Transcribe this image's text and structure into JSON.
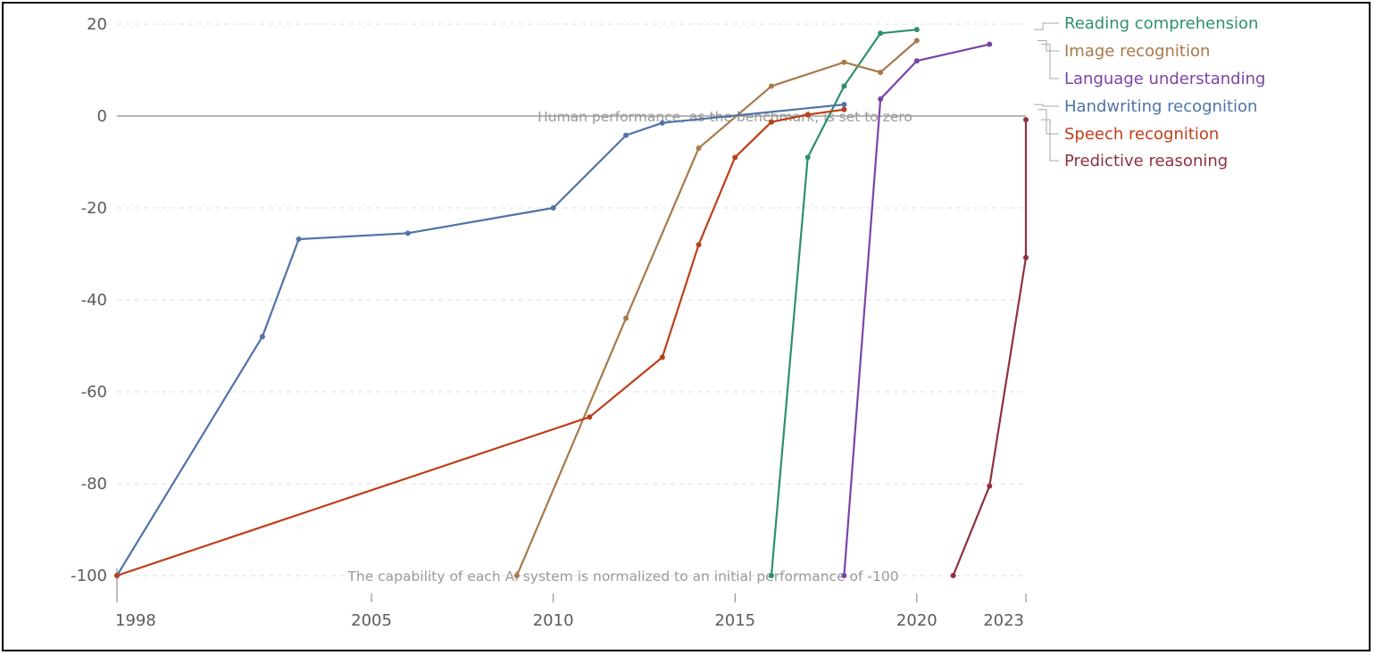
{
  "chart_data": {
    "type": "line",
    "title": "",
    "xlabel": "",
    "ylabel": "",
    "xlim": [
      1998,
      2023
    ],
    "ylim": [
      -100,
      20
    ],
    "x_ticks": [
      {
        "value": 1998,
        "label": "1998"
      },
      {
        "value": 2005,
        "label": "2005"
      },
      {
        "value": 2010,
        "label": "2010"
      },
      {
        "value": 2015,
        "label": "2015"
      },
      {
        "value": 2020,
        "label": "2020"
      },
      {
        "value": 2023,
        "label": "2023"
      }
    ],
    "y_ticks": [
      {
        "value": 20,
        "label": "20"
      },
      {
        "value": 0,
        "label": "0"
      },
      {
        "value": -20,
        "label": "-20"
      },
      {
        "value": -40,
        "label": "-40"
      },
      {
        "value": -60,
        "label": "-60"
      },
      {
        "value": -80,
        "label": "-80"
      },
      {
        "value": -100,
        "label": "-100"
      }
    ],
    "grid": true,
    "legend_position": "right",
    "annotations": [
      {
        "text": "Human performance, as the benchmark, is set to zero",
        "value": 0
      },
      {
        "text": "The capability of each AI system is normalized to an initial performance of -100",
        "value": -100
      }
    ],
    "series": [
      {
        "name": "Reading comprehension",
        "color": "#2e8f6f",
        "points": [
          [
            2016,
            -100
          ],
          [
            2017,
            -9
          ],
          [
            2018,
            6.5
          ],
          [
            2019,
            18
          ],
          [
            2020,
            18.8
          ]
        ]
      },
      {
        "name": "Image recognition",
        "color": "#a8794a",
        "points": [
          [
            2009,
            -100
          ],
          [
            2012,
            -44
          ],
          [
            2014,
            -7
          ],
          [
            2016,
            6.5
          ],
          [
            2018,
            11.7
          ],
          [
            2019,
            9.5
          ],
          [
            2020,
            16.4
          ]
        ]
      },
      {
        "name": "Language understanding",
        "color": "#7b43a8",
        "points": [
          [
            2018,
            -100
          ],
          [
            2019,
            3.7
          ],
          [
            2020,
            12
          ],
          [
            2022,
            15.6
          ]
        ]
      },
      {
        "name": "Handwriting recognition",
        "color": "#5073a8",
        "points": [
          [
            1998,
            -100
          ],
          [
            2002,
            -48
          ],
          [
            2003,
            -26.8
          ],
          [
            2006,
            -25.5
          ],
          [
            2010,
            -20
          ],
          [
            2012,
            -4.2
          ],
          [
            2013,
            -1.5
          ],
          [
            2018,
            2.5
          ]
        ]
      },
      {
        "name": "Speech recognition",
        "color": "#bc3f18",
        "points": [
          [
            1998,
            -100
          ],
          [
            2011,
            -65.5
          ],
          [
            2013,
            -52.5
          ],
          [
            2014,
            -28
          ],
          [
            2015,
            -9
          ],
          [
            2016,
            -1.3
          ],
          [
            2017,
            0.3
          ],
          [
            2018,
            1.4
          ]
        ]
      },
      {
        "name": "Predictive reasoning",
        "color": "#8f3140",
        "points": [
          [
            2021,
            -100
          ],
          [
            2022,
            -80.5
          ],
          [
            2023,
            -30.8
          ],
          [
            2024,
            -0.8
          ]
        ]
      }
    ]
  }
}
